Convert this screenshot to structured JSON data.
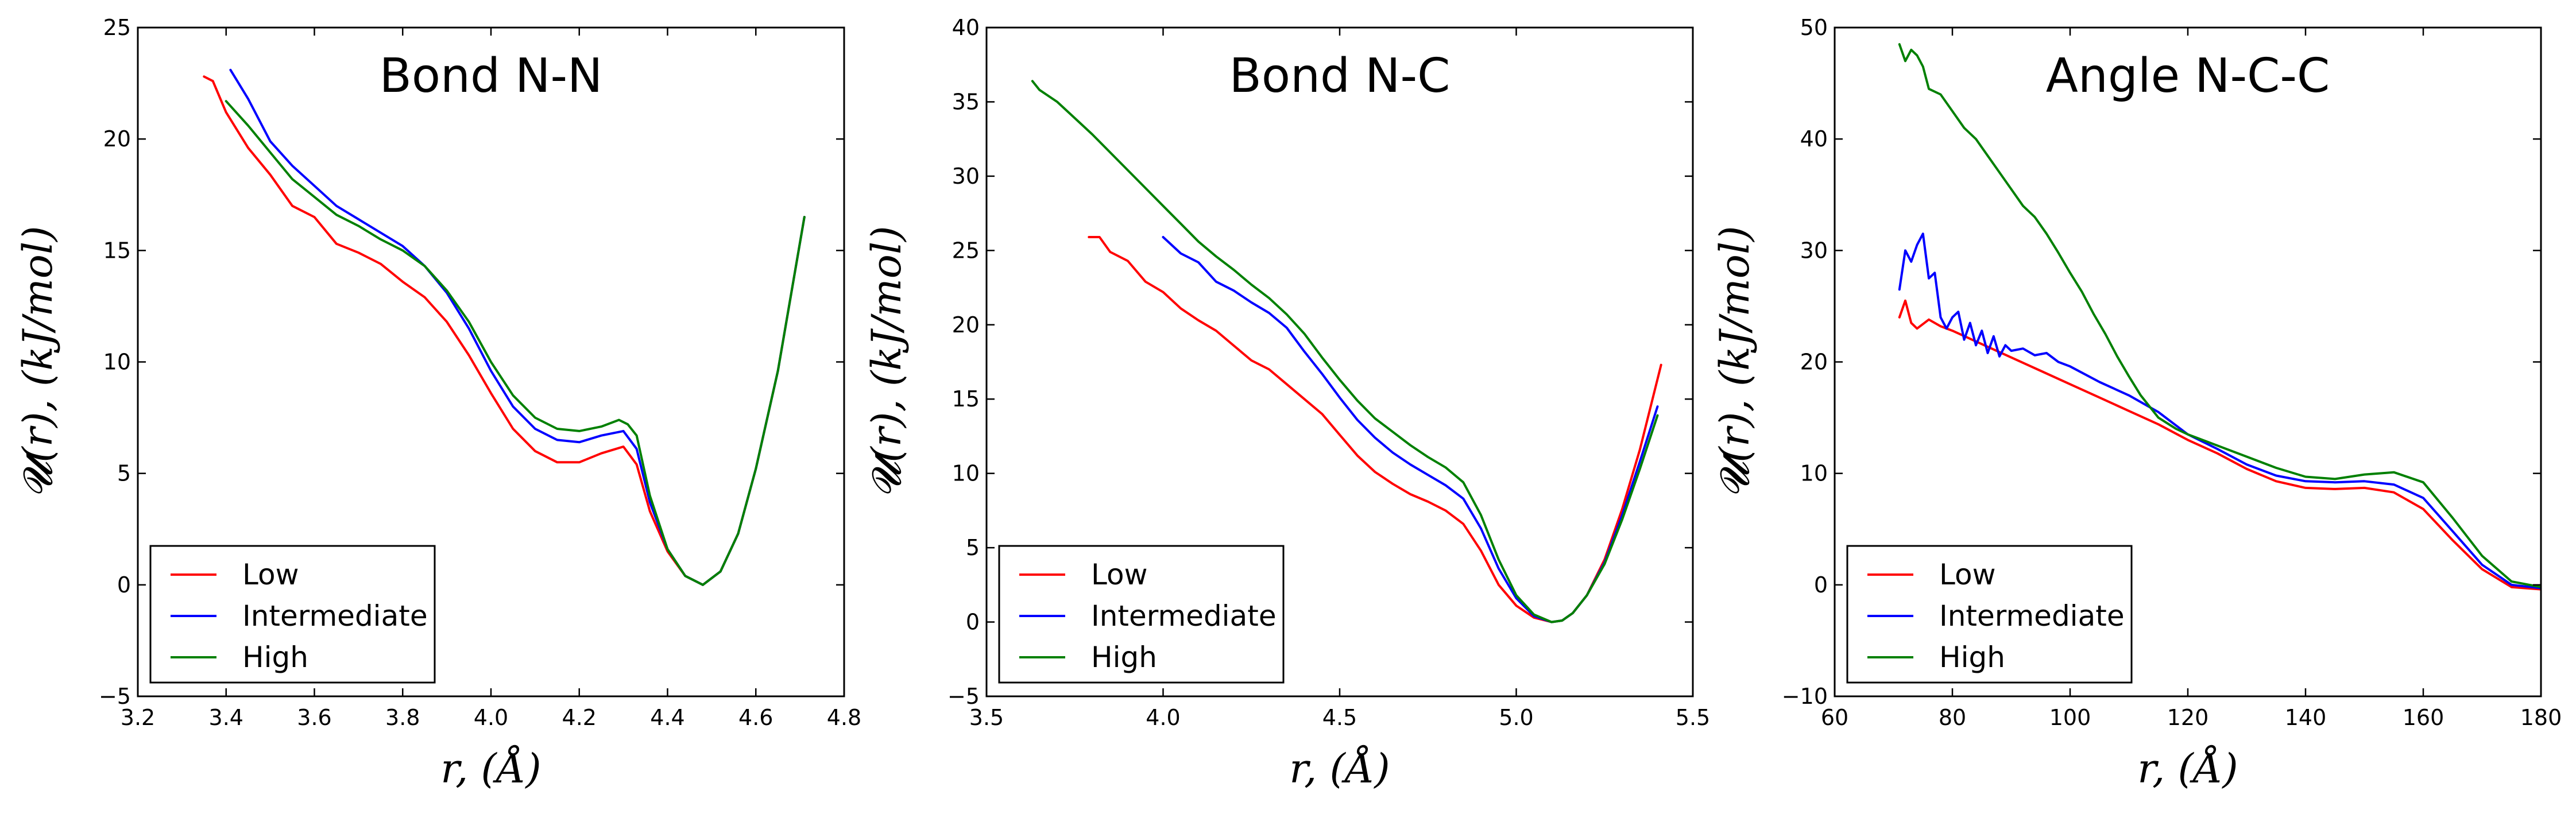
{
  "chart_data": [
    {
      "type": "line",
      "title": "Bond N-N",
      "xlabel": "r, (Å)",
      "ylabel": "𝓤(r), (kJ/mol)",
      "xlim": [
        3.2,
        4.8
      ],
      "ylim": [
        -5,
        25
      ],
      "xticks": [
        "3.2",
        "3.4",
        "3.6",
        "3.8",
        "4.0",
        "4.2",
        "4.4",
        "4.6",
        "4.8"
      ],
      "yticks": [
        "−5",
        "0",
        "5",
        "10",
        "15",
        "20",
        "25"
      ],
      "legend": {
        "position": "lower-left",
        "entries": [
          "Low",
          "Intermediate",
          "High"
        ]
      },
      "series": [
        {
          "name": "Low",
          "color": "#ff0000",
          "x": [
            3.35,
            3.37,
            3.4,
            3.45,
            3.5,
            3.55,
            3.6,
            3.65,
            3.7,
            3.75,
            3.8,
            3.85,
            3.9,
            3.95,
            4.0,
            4.05,
            4.1,
            4.15,
            4.2,
            4.25,
            4.3,
            4.33,
            4.36,
            4.4,
            4.44,
            4.48,
            4.52,
            4.56,
            4.6,
            4.65,
            4.71
          ],
          "y": [
            22.8,
            22.6,
            21.2,
            19.6,
            18.4,
            17.0,
            16.5,
            15.3,
            14.9,
            14.4,
            13.6,
            12.9,
            11.8,
            10.3,
            8.6,
            7.0,
            6.0,
            5.5,
            5.5,
            5.9,
            6.2,
            5.4,
            3.3,
            1.5,
            0.4,
            0.0,
            0.6,
            2.3,
            5.2,
            9.6,
            16.5
          ]
        },
        {
          "name": "Intermediate",
          "color": "#0000ff",
          "x": [
            3.41,
            3.45,
            3.5,
            3.55,
            3.6,
            3.65,
            3.7,
            3.75,
            3.8,
            3.85,
            3.9,
            3.95,
            4.0,
            4.05,
            4.1,
            4.15,
            4.2,
            4.25,
            4.3,
            4.33,
            4.36,
            4.4,
            4.44,
            4.48,
            4.52,
            4.56,
            4.6,
            4.65,
            4.71
          ],
          "y": [
            23.1,
            21.8,
            19.9,
            18.8,
            17.9,
            17.0,
            16.4,
            15.8,
            15.2,
            14.3,
            13.1,
            11.5,
            9.6,
            8.0,
            7.0,
            6.5,
            6.4,
            6.7,
            6.9,
            6.1,
            3.7,
            1.6,
            0.4,
            0.0,
            0.6,
            2.3,
            5.2,
            9.6,
            16.5
          ]
        },
        {
          "name": "High",
          "color": "#008000",
          "x": [
            3.4,
            3.45,
            3.5,
            3.55,
            3.6,
            3.65,
            3.7,
            3.75,
            3.8,
            3.85,
            3.9,
            3.95,
            4.0,
            4.05,
            4.1,
            4.15,
            4.2,
            4.25,
            4.29,
            4.31,
            4.33,
            4.36,
            4.4,
            4.44,
            4.48,
            4.52,
            4.56,
            4.6,
            4.65,
            4.71
          ],
          "y": [
            21.7,
            20.6,
            19.4,
            18.2,
            17.4,
            16.6,
            16.1,
            15.5,
            15.0,
            14.3,
            13.2,
            11.8,
            10.0,
            8.5,
            7.5,
            7.0,
            6.9,
            7.1,
            7.4,
            7.2,
            6.7,
            4.0,
            1.6,
            0.4,
            0.0,
            0.6,
            2.3,
            5.2,
            9.6,
            16.5
          ]
        }
      ]
    },
    {
      "type": "line",
      "title": "Bond N-C",
      "xlabel": "r, (Å)",
      "ylabel": "𝓤(r), (kJ/mol)",
      "xlim": [
        3.5,
        5.5
      ],
      "ylim": [
        -5,
        40
      ],
      "xticks": [
        "3.5",
        "4.0",
        "4.5",
        "5.0",
        "5.5"
      ],
      "yticks": [
        "−5",
        "0",
        "5",
        "10",
        "15",
        "20",
        "25",
        "30",
        "35",
        "40"
      ],
      "legend": {
        "position": "lower-left",
        "entries": [
          "Low",
          "Intermediate",
          "High"
        ]
      },
      "series": [
        {
          "name": "Low",
          "color": "#ff0000",
          "x": [
            3.79,
            3.82,
            3.85,
            3.9,
            3.95,
            4.0,
            4.05,
            4.1,
            4.15,
            4.2,
            4.25,
            4.3,
            4.35,
            4.4,
            4.45,
            4.5,
            4.55,
            4.6,
            4.65,
            4.7,
            4.75,
            4.8,
            4.85,
            4.9,
            4.95,
            5.0,
            5.05,
            5.1,
            5.13,
            5.16,
            5.2,
            5.25,
            5.3,
            5.35,
            5.41
          ],
          "y": [
            25.9,
            25.9,
            24.9,
            24.3,
            22.9,
            22.2,
            21.1,
            20.3,
            19.6,
            18.6,
            17.6,
            17.0,
            16.0,
            15.0,
            14.0,
            12.6,
            11.2,
            10.1,
            9.3,
            8.6,
            8.1,
            7.5,
            6.6,
            4.8,
            2.5,
            1.1,
            0.3,
            0.0,
            0.1,
            0.6,
            1.8,
            4.2,
            7.6,
            11.6,
            17.3
          ]
        },
        {
          "name": "Intermediate",
          "color": "#0000ff",
          "x": [
            4.0,
            4.05,
            4.1,
            4.15,
            4.2,
            4.25,
            4.3,
            4.35,
            4.4,
            4.45,
            4.5,
            4.55,
            4.6,
            4.65,
            4.7,
            4.75,
            4.8,
            4.85,
            4.9,
            4.95,
            5.0,
            5.05,
            5.1,
            5.13,
            5.16,
            5.2,
            5.25,
            5.3,
            5.35,
            5.4
          ],
          "y": [
            25.9,
            24.8,
            24.2,
            22.9,
            22.3,
            21.5,
            20.8,
            19.8,
            18.2,
            16.7,
            15.1,
            13.6,
            12.4,
            11.4,
            10.6,
            9.9,
            9.2,
            8.3,
            6.3,
            3.6,
            1.6,
            0.4,
            0.0,
            0.1,
            0.6,
            1.8,
            4.0,
            7.2,
            10.8,
            14.5
          ]
        },
        {
          "name": "High",
          "color": "#008000",
          "x": [
            3.63,
            3.65,
            3.7,
            3.75,
            3.8,
            3.85,
            3.9,
            3.95,
            4.0,
            4.05,
            4.1,
            4.15,
            4.2,
            4.25,
            4.3,
            4.35,
            4.4,
            4.45,
            4.5,
            4.55,
            4.6,
            4.65,
            4.7,
            4.75,
            4.8,
            4.85,
            4.9,
            4.95,
            5.0,
            5.05,
            5.1,
            5.13,
            5.16,
            5.2,
            5.25,
            5.3,
            5.35,
            5.4
          ],
          "y": [
            36.4,
            35.8,
            35.0,
            33.9,
            32.8,
            31.6,
            30.4,
            29.2,
            28.0,
            26.8,
            25.6,
            24.6,
            23.7,
            22.7,
            21.8,
            20.7,
            19.4,
            17.8,
            16.3,
            14.9,
            13.7,
            12.8,
            11.9,
            11.1,
            10.4,
            9.4,
            7.2,
            4.2,
            1.8,
            0.5,
            0.0,
            0.1,
            0.6,
            1.8,
            3.9,
            6.9,
            10.3,
            13.9
          ]
        }
      ]
    },
    {
      "type": "line",
      "title": "Angle N-C-C",
      "xlabel": "r, (Å)",
      "ylabel": "𝓤(r), (kJ/mol)",
      "xlim": [
        60,
        180
      ],
      "ylim": [
        -10,
        50
      ],
      "xticks": [
        "60",
        "80",
        "100",
        "120",
        "140",
        "160",
        "180"
      ],
      "yticks": [
        "−10",
        "0",
        "10",
        "20",
        "30",
        "40",
        "50"
      ],
      "legend": {
        "position": "lower-left",
        "entries": [
          "Low",
          "Intermediate",
          "High"
        ]
      },
      "series": [
        {
          "name": "Low",
          "color": "#ff0000",
          "x": [
            71,
            72,
            73,
            74,
            76,
            78,
            80,
            85,
            90,
            95,
            100,
            105,
            110,
            115,
            120,
            125,
            130,
            135,
            140,
            145,
            150,
            155,
            160,
            165,
            170,
            175,
            180
          ],
          "y": [
            24.0,
            25.5,
            23.5,
            23.0,
            23.8,
            23.2,
            22.8,
            21.6,
            20.4,
            19.2,
            18.0,
            16.8,
            15.6,
            14.4,
            13.0,
            11.8,
            10.4,
            9.3,
            8.7,
            8.6,
            8.7,
            8.3,
            6.8,
            4.0,
            1.4,
            -0.2,
            -0.4
          ]
        },
        {
          "name": "Intermediate",
          "color": "#0000ff",
          "x": [
            71,
            72,
            73,
            74,
            75,
            76,
            77,
            78,
            79,
            80,
            81,
            82,
            83,
            84,
            85,
            86,
            87,
            88,
            89,
            90,
            92,
            94,
            96,
            98,
            100,
            105,
            110,
            115,
            120,
            125,
            130,
            135,
            140,
            145,
            150,
            155,
            160,
            165,
            170,
            175,
            180
          ],
          "y": [
            26.5,
            30.0,
            29.0,
            30.5,
            31.5,
            27.5,
            28.0,
            24.0,
            23.0,
            24.0,
            24.5,
            22.0,
            23.5,
            21.5,
            22.8,
            20.8,
            22.3,
            20.5,
            21.5,
            21.0,
            21.2,
            20.6,
            20.8,
            20.0,
            19.6,
            18.2,
            17.0,
            15.5,
            13.5,
            12.2,
            10.8,
            9.8,
            9.3,
            9.2,
            9.3,
            9.0,
            7.8,
            4.8,
            1.8,
            0.0,
            -0.3
          ]
        },
        {
          "name": "High",
          "color": "#008000",
          "x": [
            71,
            72,
            73,
            74,
            75,
            76,
            78,
            80,
            82,
            84,
            86,
            88,
            90,
            92,
            94,
            96,
            98,
            100,
            102,
            104,
            106,
            108,
            110,
            112,
            115,
            118,
            120,
            125,
            130,
            135,
            140,
            145,
            150,
            155,
            160,
            165,
            170,
            175,
            180
          ],
          "y": [
            48.5,
            47.0,
            48.0,
            47.5,
            46.5,
            44.5,
            44.0,
            42.5,
            41.0,
            40.0,
            38.5,
            37.0,
            35.5,
            34.0,
            33.0,
            31.5,
            29.8,
            28.0,
            26.3,
            24.3,
            22.5,
            20.5,
            18.7,
            17.0,
            15.0,
            14.0,
            13.5,
            12.5,
            11.5,
            10.5,
            9.7,
            9.5,
            9.9,
            10.1,
            9.2,
            6.0,
            2.6,
            0.3,
            -0.2
          ]
        }
      ]
    }
  ]
}
